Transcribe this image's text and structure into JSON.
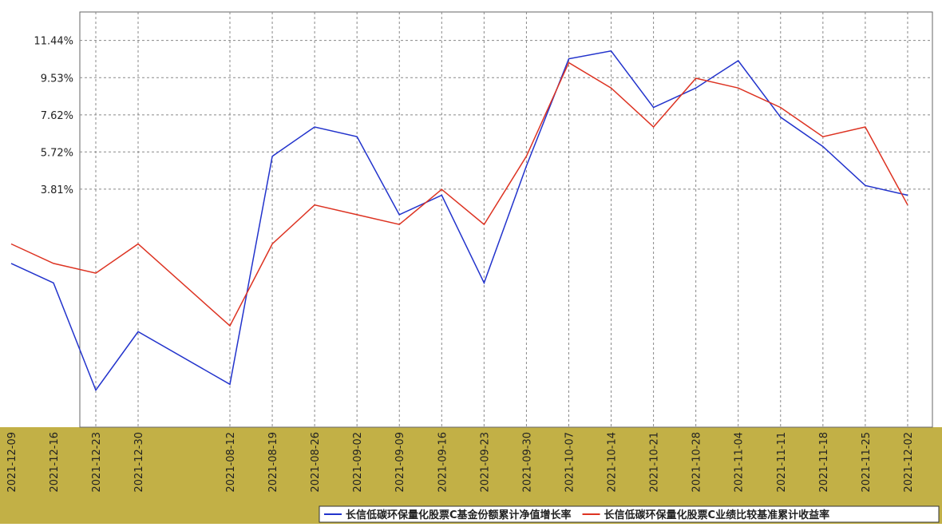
{
  "chart_data": {
    "type": "line",
    "categories": [
      "2021-12-09",
      "2021-12-16",
      "2021-12-23",
      "2021-12-30",
      "2021-08-12",
      "2021-08-19",
      "2021-08-26",
      "2021-09-02",
      "2021-09-09",
      "2021-09-16",
      "2021-09-23",
      "2021-09-30",
      "2021-10-07",
      "2021-10-14",
      "2021-10-21",
      "2021-10-28",
      "2021-11-04",
      "2021-11-11",
      "2021-11-18",
      "2021-11-25",
      "2021-12-02"
    ],
    "series": [
      {
        "name": "长信低碳环保量化股票C基金份额累计净值增长率",
        "color": "#2233cc",
        "values": [
          0,
          -1,
          -6.5,
          -3.5,
          -6.2,
          5.5,
          7.0,
          6.5,
          2.5,
          3.5,
          -1.0,
          5.0,
          10.5,
          10.9,
          8.0,
          9.0,
          10.4,
          7.5,
          6.0,
          4.0,
          3.5
        ]
      },
      {
        "name": "长信低碳环保量化股票C业绩比较基准累计收益率",
        "color": "#dd3322",
        "values": [
          1,
          0,
          -0.5,
          1.0,
          -3.2,
          1.0,
          3.0,
          2.5,
          2.0,
          3.8,
          2.0,
          5.5,
          10.3,
          9.0,
          7.0,
          9.5,
          9.0,
          8.0,
          6.5,
          7.0,
          3.0
        ]
      }
    ],
    "ylim": [
      -8.4,
      12.9
    ],
    "yticks": [
      {
        "value": 11.44,
        "label": "11.44%"
      },
      {
        "value": 9.53,
        "label": "9.53%"
      },
      {
        "value": 7.62,
        "label": "7.62%"
      },
      {
        "value": 5.72,
        "label": "5.72%"
      },
      {
        "value": 3.81,
        "label": "3.81%"
      }
    ],
    "grid": true
  }
}
